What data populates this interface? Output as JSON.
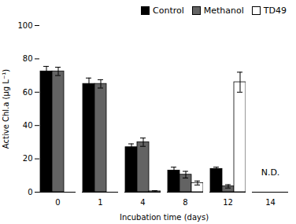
{
  "chart_data": {
    "type": "bar",
    "categories": [
      "0",
      "1",
      "4",
      "8",
      "12",
      "14"
    ],
    "xlabel": "Incubation time (days)",
    "ylabel": "Active Chl.a (μg L⁻¹)",
    "ylim": [
      0,
      100
    ],
    "yticks": [
      0,
      20,
      40,
      60,
      80,
      100
    ],
    "grid": false,
    "legend": "upper right",
    "series": [
      {
        "name": "Control",
        "color": "#000000",
        "values": [
          72.5,
          65.0,
          27.0,
          13.0,
          14.0,
          null
        ],
        "errors": [
          3.0,
          3.5,
          2.0,
          2.0,
          1.0,
          null
        ]
      },
      {
        "name": "Methanol",
        "color": "#636363",
        "values": [
          72.5,
          65.0,
          30.0,
          10.5,
          3.5,
          null
        ],
        "errors": [
          2.5,
          2.5,
          2.5,
          2.0,
          1.0,
          null
        ]
      },
      {
        "name": "TD49",
        "color": "#ffffff",
        "values": [
          null,
          null,
          0.5,
          5.5,
          66.0,
          null
        ],
        "errors": [
          null,
          null,
          0.4,
          1.2,
          6.0,
          null
        ]
      }
    ],
    "annotations": [
      {
        "text": "N.D.",
        "x": "14",
        "y": 12
      }
    ]
  }
}
